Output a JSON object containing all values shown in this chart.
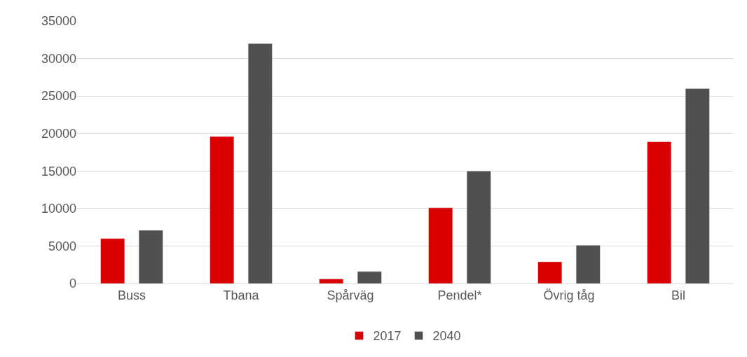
{
  "chart_data": {
    "type": "bar",
    "categories": [
      "Buss",
      "Tbana",
      "Spårväg",
      "Pendel*",
      "Övrig tåg",
      "Bil"
    ],
    "series": [
      {
        "name": "2017",
        "color": "#d90000",
        "values": [
          6000,
          19600,
          600,
          10100,
          2900,
          18900
        ]
      },
      {
        "name": "2040",
        "color": "#505050",
        "values": [
          7100,
          32000,
          1600,
          15000,
          5100,
          26000
        ]
      }
    ],
    "ylim": [
      0,
      35000
    ],
    "yticks": [
      0,
      5000,
      10000,
      15000,
      20000,
      25000,
      30000,
      35000
    ],
    "grid": "y",
    "legend": "bottom"
  }
}
